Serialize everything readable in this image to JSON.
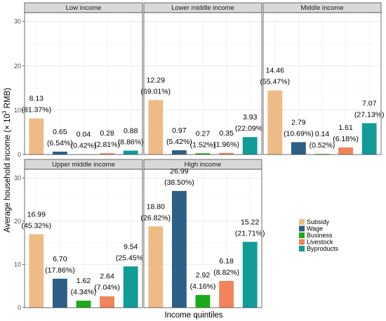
{
  "chart_data": {
    "type": "bar",
    "xlabel": "Income quintiles",
    "ylabel_prefix": "Average household income (× 10",
    "ylabel_sup": "3",
    "ylabel_suffix": " RMB)",
    "ylim": [
      0,
      32
    ],
    "yticks": [
      0,
      10,
      20,
      30
    ],
    "grid": true,
    "legend_position": "right",
    "categories": [
      "Subsidy",
      "Wage",
      "Business",
      "Livestock",
      "Byproducts"
    ],
    "colors": [
      "#EDBC86",
      "#2E5F86",
      "#1AAB1A",
      "#F2845C",
      "#119C98"
    ],
    "panels": [
      {
        "title": "Low income",
        "values": [
          8.13,
          0.65,
          0.04,
          0.28,
          0.88
        ],
        "value_labels": [
          "8.13",
          "0.65",
          "0.04",
          "0.28",
          "0.88"
        ],
        "percents": [
          "(81.37%)",
          "(6.54%)",
          "(0.42%)",
          "(2.81%)",
          "(8.86%)"
        ]
      },
      {
        "title": "Lower middle income",
        "values": [
          12.29,
          0.97,
          0.27,
          0.35,
          3.93
        ],
        "value_labels": [
          "12.29",
          "0.97",
          "0.27",
          "0.35",
          "3.93"
        ],
        "percents": [
          "(69.01%)",
          "(5.42%)",
          "(1.52%)",
          "(1.96%)",
          "(22.09%)"
        ]
      },
      {
        "title": "Middle income",
        "values": [
          14.46,
          2.79,
          0.14,
          1.61,
          7.07
        ],
        "value_labels": [
          "14.46",
          "2.79",
          "0.14",
          "1.61",
          "7.07"
        ],
        "percents": [
          "(55.47%)",
          "(10.69%)",
          "(0.52%)",
          "(6.18%)",
          "(27.13%)"
        ]
      },
      {
        "title": "Upper middle income",
        "values": [
          16.99,
          6.7,
          1.62,
          2.64,
          9.54
        ],
        "value_labels": [
          "16.99",
          "6.70",
          "1.62",
          "2.64",
          "9.54"
        ],
        "percents": [
          "(45.32%)",
          "(17.86%)",
          "(4.34%)",
          "(7.04%)",
          "(25.45%)"
        ]
      },
      {
        "title": "High income",
        "values": [
          18.8,
          26.99,
          2.92,
          6.18,
          15.22
        ],
        "value_labels": [
          "18.80",
          "26.99",
          "2.92",
          "6.18",
          "15.22"
        ],
        "percents": [
          "(26.82%)",
          "(38.50%)",
          "(4.16%)",
          "(8.82%)",
          "(21.71%)"
        ]
      }
    ]
  }
}
